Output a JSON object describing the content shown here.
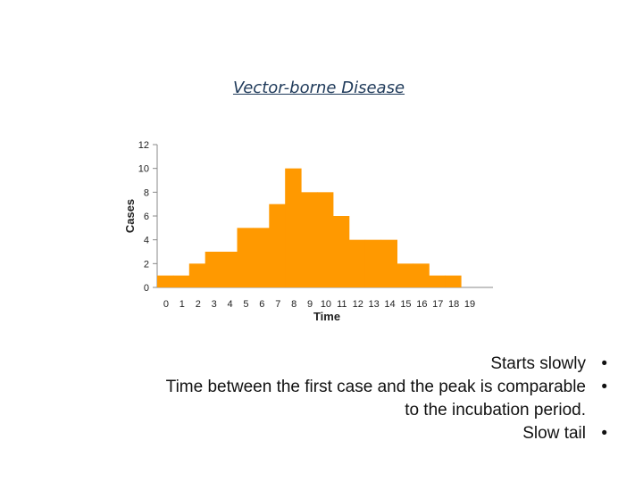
{
  "slide": {
    "title": "Vector-borne Disease"
  },
  "bullets": [
    {
      "text": "Starts slowly",
      "marker": "•"
    },
    {
      "text": "Time between the first case and the peak is comparable\nto the incubation period.",
      "marker": "•"
    },
    {
      "text": "Slow tail",
      "marker": "•"
    }
  ],
  "chart_data": {
    "type": "bar",
    "title": "",
    "xlabel": "Time",
    "ylabel": "Cases",
    "categories": [
      "0",
      "1",
      "2",
      "3",
      "4",
      "5",
      "6",
      "7",
      "8",
      "9",
      "10",
      "11",
      "12",
      "13",
      "14",
      "15",
      "16",
      "17",
      "18",
      "19"
    ],
    "values": [
      1,
      1,
      2,
      3,
      3,
      5,
      5,
      7,
      10,
      8,
      8,
      6,
      4,
      4,
      4,
      2,
      2,
      1,
      1,
      0
    ],
    "ylim": [
      0,
      12
    ],
    "yticks": [
      0,
      2,
      4,
      6,
      8,
      10,
      12
    ],
    "grid": false,
    "color": "#ff9900"
  }
}
